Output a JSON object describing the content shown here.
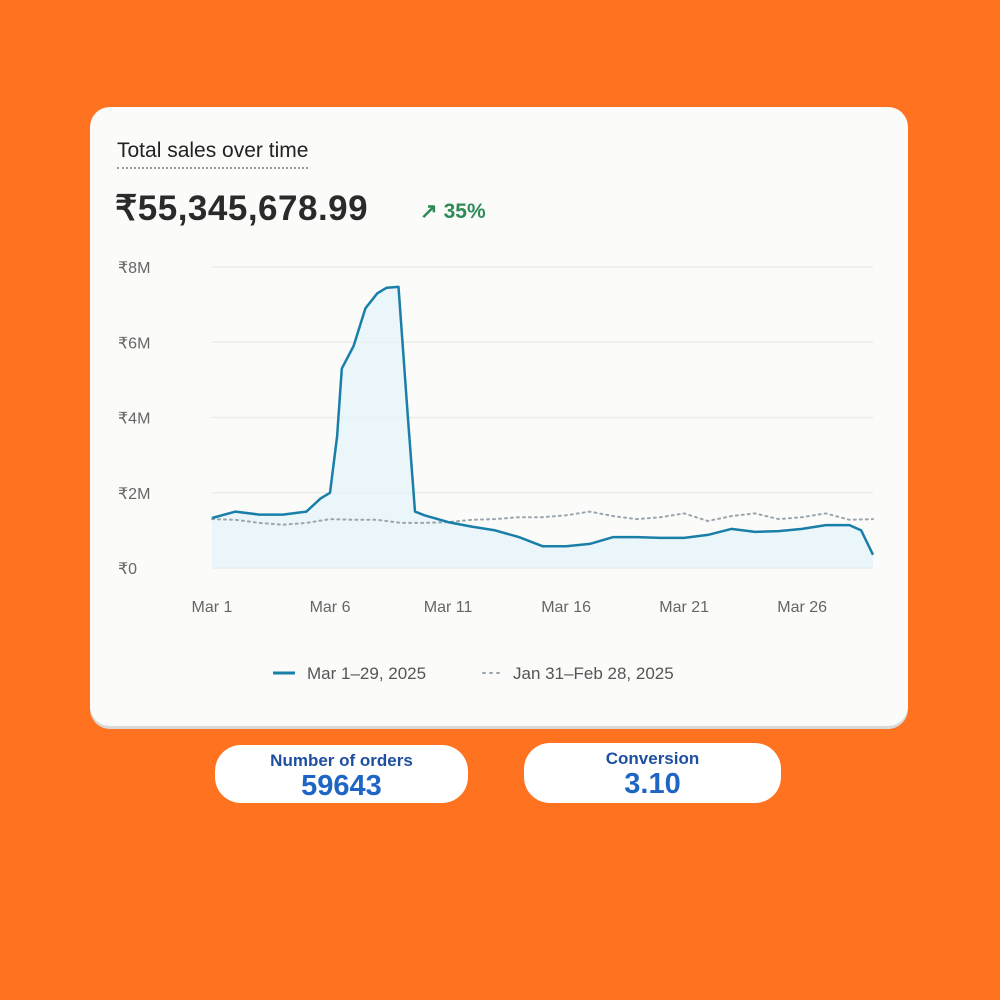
{
  "card": {
    "title": "Total sales over time",
    "total": "₹55,345,678.99",
    "change": "35%",
    "change_icon": "arrow-up-right-icon"
  },
  "colors": {
    "background": "#FF7320",
    "primary_line": "#1a7fa8",
    "comparison_line": "#9aa5ad",
    "positive": "#2e8b57"
  },
  "chart_data": {
    "type": "line",
    "title": "Total sales over time",
    "xlabel": "",
    "ylabel": "",
    "ylim": [
      0,
      8000000
    ],
    "yticks": [
      {
        "v": 0,
        "label": "₹0"
      },
      {
        "v": 2000000,
        "label": "₹2M"
      },
      {
        "v": 4000000,
        "label": "₹4M"
      },
      {
        "v": 6000000,
        "label": "₹6M"
      },
      {
        "v": 8000000,
        "label": "₹8M"
      }
    ],
    "xticks": [
      {
        "day": 1,
        "label": "Mar 1"
      },
      {
        "day": 6,
        "label": "Mar 6"
      },
      {
        "day": 11,
        "label": "Mar 11"
      },
      {
        "day": 16,
        "label": "Mar 16"
      },
      {
        "day": 21,
        "label": "Mar 21"
      },
      {
        "day": 26,
        "label": "Mar 26"
      }
    ],
    "xlim": [
      1,
      29
    ],
    "grid": true,
    "legend_position": "bottom",
    "series": [
      {
        "name": "Mar 1-29, 2025",
        "style": "solid",
        "x": [
          1,
          2,
          3,
          4,
          5,
          5.6,
          6,
          6.3,
          6.5,
          7,
          7.5,
          8,
          8.4,
          8.9,
          9.3,
          9.6,
          10,
          11,
          12,
          13,
          14,
          15,
          16,
          17,
          18,
          19,
          20,
          21,
          22,
          23,
          24,
          25,
          26,
          27,
          28,
          28.5,
          29
        ],
        "y": [
          1330000,
          1500000,
          1420000,
          1420000,
          1500000,
          1850000,
          2000000,
          3500000,
          5300000,
          5900000,
          6900000,
          7300000,
          7450000,
          7470000,
          4000000,
          1500000,
          1400000,
          1220000,
          1100000,
          1000000,
          820000,
          580000,
          580000,
          640000,
          820000,
          820000,
          800000,
          800000,
          880000,
          1040000,
          960000,
          980000,
          1040000,
          1140000,
          1140000,
          1000000,
          350000
        ]
      },
      {
        "name": "Jan 31-Feb 28, 2025",
        "style": "dotted",
        "x": [
          1,
          2,
          3,
          4,
          5,
          6,
          7,
          8,
          9,
          10,
          11,
          12,
          13,
          14,
          15,
          16,
          17,
          18,
          19,
          20,
          21,
          22,
          23,
          24,
          25,
          26,
          27,
          28,
          29
        ],
        "y": [
          1300000,
          1280000,
          1200000,
          1150000,
          1200000,
          1300000,
          1280000,
          1280000,
          1200000,
          1200000,
          1220000,
          1280000,
          1300000,
          1350000,
          1350000,
          1400000,
          1500000,
          1380000,
          1300000,
          1350000,
          1450000,
          1250000,
          1380000,
          1450000,
          1300000,
          1350000,
          1450000,
          1280000,
          1300000
        ]
      }
    ]
  },
  "stats": [
    {
      "label": "Number of orders",
      "value": "59643"
    },
    {
      "label": "Conversion",
      "value": "3.10"
    }
  ]
}
